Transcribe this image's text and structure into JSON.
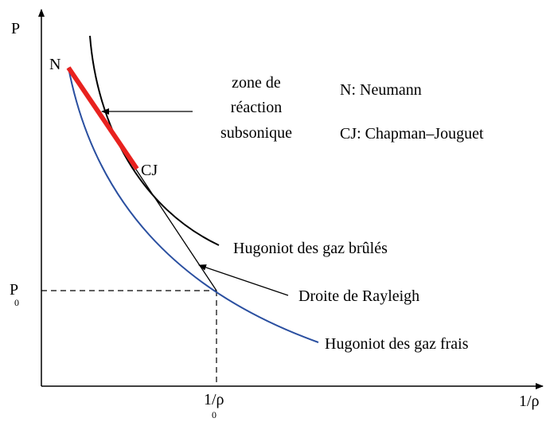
{
  "axes": {
    "y_label": "P",
    "x_label": "1/ρ"
  },
  "reference": {
    "p0": {
      "base": "P",
      "sub": "0"
    },
    "v0": {
      "base": "1/ρ",
      "sub": "0"
    }
  },
  "points": {
    "n": "N",
    "cj": "CJ"
  },
  "annotations": {
    "zone": [
      "zone de",
      "réaction",
      "subsonique"
    ],
    "hugoniot_burned": "Hugoniot des gaz brûlés",
    "rayleigh": "Droite de Rayleigh",
    "hugoniot_fresh": "Hugoniot des gaz frais"
  },
  "legend": [
    "N: Neumann",
    "CJ: Chapman–Jouguet"
  ]
}
